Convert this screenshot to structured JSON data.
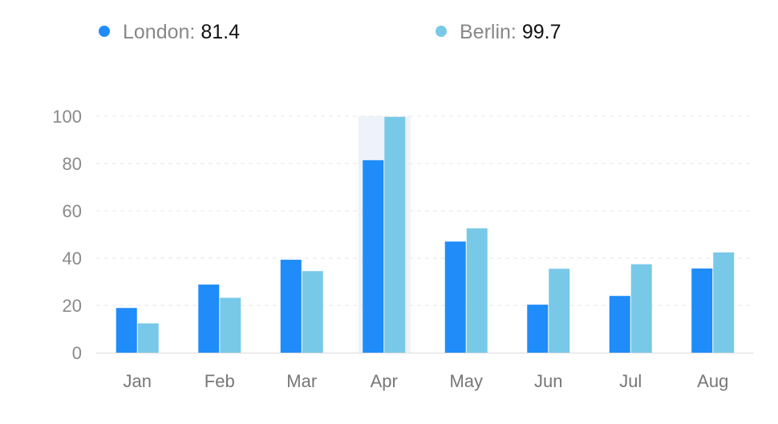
{
  "chart_data": {
    "type": "bar",
    "categories": [
      "Jan",
      "Feb",
      "Mar",
      "Apr",
      "May",
      "Jun",
      "Jul",
      "Aug"
    ],
    "series": [
      {
        "name": "London",
        "color": "#1f8cf9",
        "values": [
          18.9,
          28.8,
          39.3,
          81.4,
          47,
          20.3,
          24,
          35.6
        ]
      },
      {
        "name": "Berlin",
        "color": "#78c9e8",
        "values": [
          12.4,
          23.2,
          34.5,
          99.7,
          52.6,
          35.5,
          37.4,
          42.4
        ]
      }
    ],
    "ylim": [
      0,
      100
    ],
    "yticks": [
      0,
      20,
      40,
      60,
      80,
      100
    ],
    "grid": true,
    "legend": {
      "position": "top",
      "items": [
        {
          "name": "London",
          "value": "81.4",
          "color": "#1f8cf9"
        },
        {
          "name": "Berlin",
          "value": "99.7",
          "color": "#78c9e8"
        }
      ]
    },
    "highlighted_category": "Apr",
    "title": "",
    "xlabel": "",
    "ylabel": ""
  }
}
